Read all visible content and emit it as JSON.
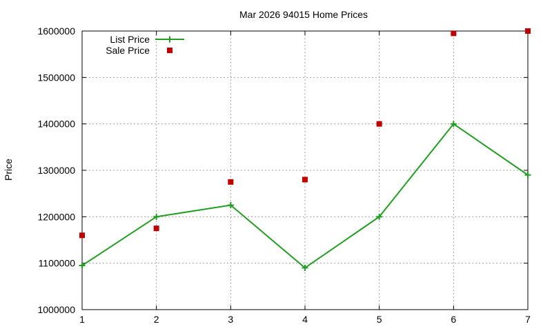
{
  "chart_data": {
    "type": "line",
    "title": "Mar 2026 94015 Home Prices",
    "xlabel": "",
    "ylabel": "Price",
    "x": [
      1,
      2,
      3,
      4,
      5,
      6,
      7
    ],
    "xlim": [
      1,
      7
    ],
    "ylim": [
      1000000,
      1600000
    ],
    "x_ticks": [
      "1",
      "2",
      "3",
      "4",
      "5",
      "6",
      "7"
    ],
    "y_ticks": [
      "1000000",
      "1100000",
      "1200000",
      "1300000",
      "1400000",
      "1500000",
      "1600000"
    ],
    "grid": true,
    "legend_position": "top-left",
    "series": [
      {
        "name": "List Price",
        "style": "line-with-plus-markers",
        "color": "#1f9e1f",
        "values": [
          1095000,
          1200000,
          1225000,
          1090000,
          1200000,
          1400000,
          1290000
        ]
      },
      {
        "name": "Sale Price",
        "style": "square-markers",
        "color": "#c00000",
        "values": [
          1160000,
          1175000,
          1275000,
          1280000,
          1400000,
          1595000,
          1600000
        ]
      }
    ]
  }
}
